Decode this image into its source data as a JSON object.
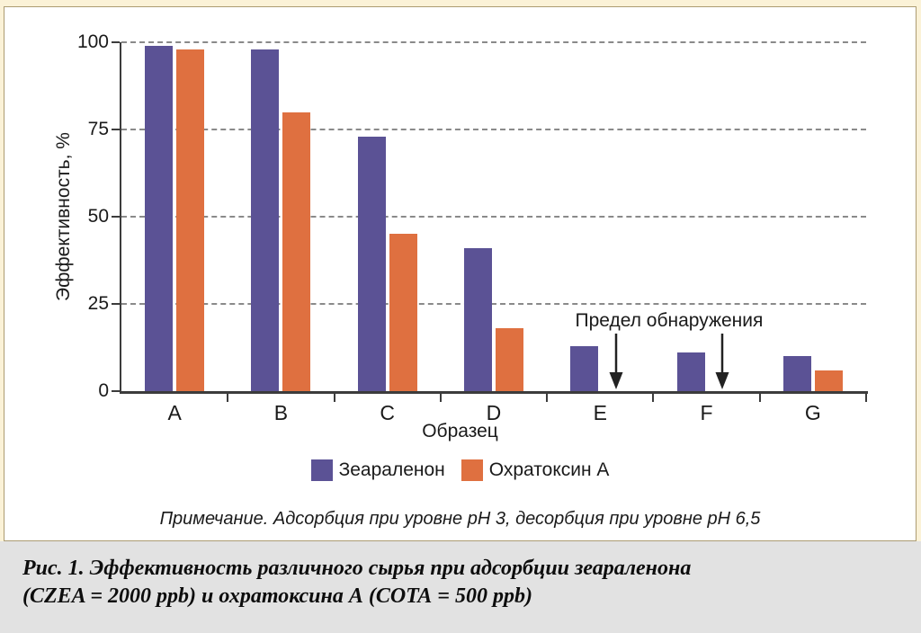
{
  "chart_data": {
    "type": "bar",
    "title": "",
    "categories": [
      "A",
      "B",
      "C",
      "D",
      "E",
      "F",
      "G"
    ],
    "series": [
      {
        "id": "zearalenone",
        "name": "Зеараленон",
        "color": "#5b5295",
        "values": [
          99,
          98,
          73,
          41,
          13,
          11,
          10
        ]
      },
      {
        "id": "ochratoxin-a",
        "name": "Охратоксин А",
        "color": "#df7040",
        "values": [
          98,
          80,
          45,
          18,
          null,
          null,
          6
        ]
      }
    ],
    "xlabel": "Образец",
    "ylabel": "Эффективность, %",
    "ylim": [
      0,
      100
    ],
    "yticks": [
      0,
      25,
      50,
      75,
      100
    ],
    "grid": "horizontal-dashed",
    "legend_position": "bottom-center",
    "annotation": {
      "text": "Предел обнаружения",
      "arrow_categories": [
        "E",
        "F"
      ]
    }
  },
  "note": "Примечание. Адсорбция при уровне pH 3, десорбция при уровне pH 6,5",
  "caption": {
    "line1": "Рис. 1. Эффективность различного сырья при адсорбции зеараленона",
    "line2": "(CZEA = 2000 ppb) и охратоксина А (СОТА = 500 ppb)"
  },
  "colors": {
    "zearalenone": "#5b5295",
    "ochratoxin_a": "#df7040",
    "axis": "#3c3c3c",
    "caption_bg": "#e2e2e2",
    "page_bg": "#fbf2d7"
  }
}
